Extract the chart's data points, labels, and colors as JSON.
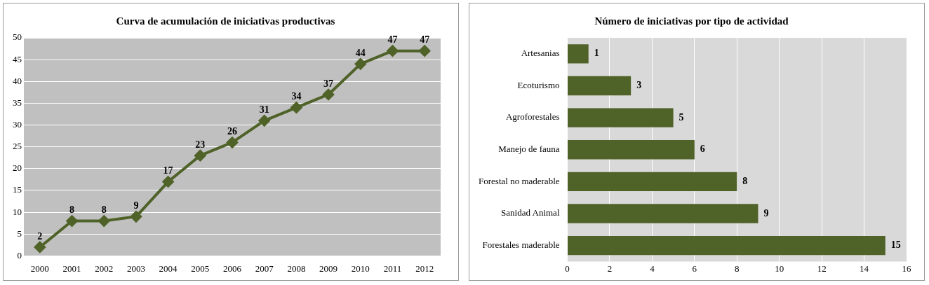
{
  "chart_data": [
    {
      "type": "line",
      "title": "Curva de acumulación de iniciativas productivas",
      "categories": [
        "2000",
        "2001",
        "2002",
        "2003",
        "2004",
        "2005",
        "2006",
        "2007",
        "2008",
        "2009",
        "2010",
        "2011",
        "2012"
      ],
      "series": [
        {
          "color": "#4f6228",
          "values": [
            2,
            8,
            8,
            9,
            17,
            23,
            26,
            31,
            34,
            37,
            44,
            47,
            47
          ]
        }
      ],
      "ylim": [
        0,
        50
      ],
      "yticks": [
        0,
        5,
        10,
        15,
        20,
        25,
        30,
        35,
        40,
        45,
        50
      ],
      "grid": "y",
      "marker": "diamond",
      "data_labels": true,
      "legend": false
    },
    {
      "type": "bar",
      "orientation": "horizontal",
      "title": "Número de iniciativas por tipo de actividad",
      "categories": [
        "Artesanias",
        "Ecoturismo",
        "Agroforestales",
        "Manejo de fauna",
        "Forestal no maderable",
        "Sanidad Animal",
        "Forestales maderable"
      ],
      "series": [
        {
          "color": "#4f6228",
          "values": [
            1,
            3,
            5,
            6,
            8,
            9,
            15
          ]
        }
      ],
      "xlim": [
        0,
        16
      ],
      "xticks": [
        0,
        2,
        4,
        6,
        8,
        10,
        12,
        14,
        16
      ],
      "grid": "x",
      "data_labels": true,
      "legend": false
    }
  ]
}
